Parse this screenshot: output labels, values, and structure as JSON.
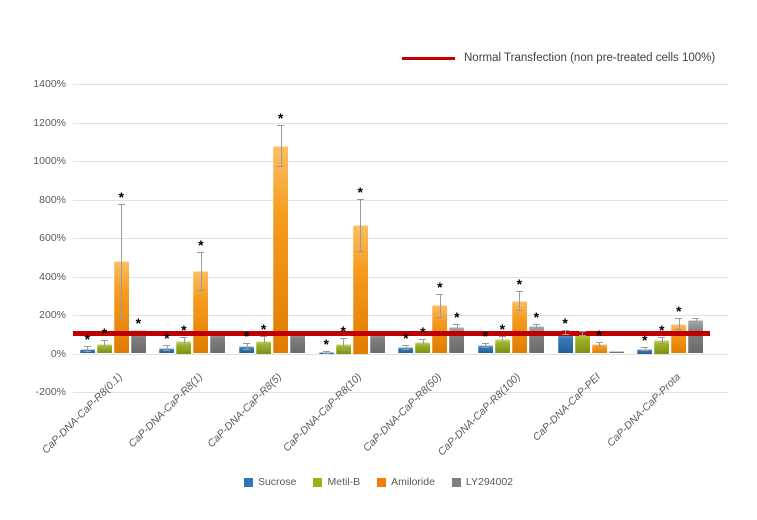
{
  "chart_data": {
    "type": "bar",
    "title": "",
    "xlabel": "",
    "ylabel": "",
    "ylim": [
      -200,
      1400
    ],
    "grid": true,
    "legend_position": "bottom",
    "y_ticks": [
      {
        "label": "1400%",
        "value": 1400
      },
      {
        "label": "1200%",
        "value": 1200
      },
      {
        "label": "1000%",
        "value": 1000
      },
      {
        "label": "800%",
        "value": 800
      },
      {
        "label": "600%",
        "value": 600
      },
      {
        "label": "400%",
        "value": 400
      },
      {
        "label": "200%",
        "value": 200
      },
      {
        "label": "0%",
        "value": 0
      },
      {
        "label": "-200%",
        "value": -200
      }
    ],
    "categories": [
      "CaP-DNA-CaP-R8(0.1)",
      "CaP-DNA-CaP-R8(1)",
      "CaP-DNA-CaP-R8(5)",
      "CaP-DNA-CaP-R8(10)",
      "CaP-DNA-CaP-R8(50)",
      "CaP-DNA-CaP-R8(100)",
      "CaP-DNA-CaP-PEI",
      "CaP-DNA-CaP-Prota"
    ],
    "series": [
      {
        "name": "Sucrose",
        "color": "#2E75B6",
        "gradient": [
          "#7FB0DA",
          "#3679B5",
          "#255E94"
        ],
        "values": [
          25,
          30,
          40,
          8,
          35,
          45,
          112,
          26
        ],
        "errors": [
          12,
          12,
          15,
          6,
          12,
          12,
          12,
          10
        ],
        "significant": [
          true,
          true,
          true,
          true,
          true,
          true,
          true,
          true
        ]
      },
      {
        "name": "Metil-B",
        "color": "#9CB020",
        "gradient": [
          "#C6D95E",
          "#9CB020",
          "#7E8F16"
        ],
        "values": [
          50,
          65,
          65,
          52,
          60,
          75,
          108,
          70
        ],
        "errors": [
          22,
          20,
          25,
          28,
          18,
          15,
          10,
          14
        ],
        "significant": [
          true,
          true,
          true,
          true,
          true,
          true,
          false,
          true
        ]
      },
      {
        "name": "Amiloride",
        "color": "#F07F09",
        "gradient": [
          "#FBBF62",
          "#F59B1E",
          "#E07C00"
        ],
        "values": [
          480,
          430,
          1080,
          670,
          250,
          275,
          50,
          155
        ],
        "errors": [
          295,
          100,
          105,
          135,
          58,
          48,
          12,
          28
        ],
        "significant": [
          true,
          true,
          true,
          true,
          true,
          true,
          true,
          true
        ]
      },
      {
        "name": "LY294002",
        "color": "#7F7F7F",
        "gradient": [
          "#ACACAC",
          "#7F7F7F",
          "#6A6A6A"
        ],
        "values": [
          120,
          110,
          115,
          112,
          140,
          145,
          15,
          175
        ],
        "errors": [
          0,
          0,
          0,
          0,
          12,
          10,
          0,
          8
        ],
        "significant": [
          true,
          false,
          false,
          false,
          true,
          true,
          false,
          false
        ]
      }
    ],
    "reference_line": {
      "label": "Normal Transfection (non pre-treated cells 100%)",
      "value": 100,
      "color": "#C00000"
    },
    "significance_marker": "*"
  }
}
